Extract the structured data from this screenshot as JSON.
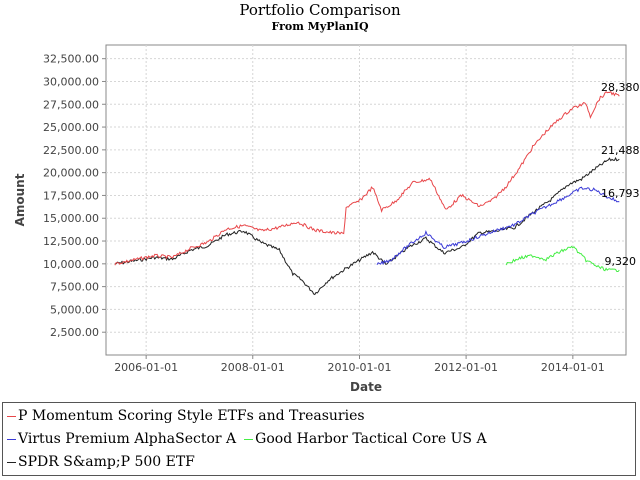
{
  "title": "Portfolio Comparison",
  "subtitle": "From MyPlanIQ",
  "chart_data": {
    "type": "line",
    "title": "Portfolio Comparison",
    "subtitle": "From MyPlanIQ",
    "xlabel": "Date",
    "ylabel": "Amount",
    "xlim": [
      "2005-04-01",
      "2014-12-31"
    ],
    "ylim": [
      0,
      34000
    ],
    "x_ticks": [
      "2006-01-01",
      "2008-01-01",
      "2010-01-01",
      "2012-01-01",
      "2014-01-01"
    ],
    "y_ticks": [
      "2,500.00",
      "5,000.00",
      "7,500.00",
      "10,000.00",
      "12,500.00",
      "15,000.00",
      "17,500.00",
      "20,000.00",
      "22,500.00",
      "25,000.00",
      "27,500.00",
      "30,000.00",
      "32,500.00"
    ],
    "y_tick_values": [
      2500,
      5000,
      7500,
      10000,
      12500,
      15000,
      17500,
      20000,
      22500,
      25000,
      27500,
      30000,
      32500
    ],
    "grid": true,
    "legend_position": "bottom",
    "series": [
      {
        "name": "P Momentum Scoring Style ETFs and Treasuries",
        "color": "#e8474a",
        "end_label": "28,380",
        "points": [
          [
            "2005-06-01",
            10000
          ],
          [
            "2005-10-01",
            10400
          ],
          [
            "2006-03-01",
            10900
          ],
          [
            "2006-07-01",
            10700
          ],
          [
            "2006-11-01",
            11700
          ],
          [
            "2007-03-01",
            12400
          ],
          [
            "2007-07-01",
            13800
          ],
          [
            "2007-11-01",
            14200
          ],
          [
            "2008-03-01",
            13600
          ],
          [
            "2008-07-01",
            14000
          ],
          [
            "2008-11-01",
            14600
          ],
          [
            "2009-03-01",
            13700
          ],
          [
            "2009-07-01",
            13400
          ],
          [
            "2009-09-15",
            13300
          ],
          [
            "2009-10-01",
            16200
          ],
          [
            "2010-01-01",
            16900
          ],
          [
            "2010-04-01",
            18400
          ],
          [
            "2010-06-01",
            15900
          ],
          [
            "2010-09-01",
            16800
          ],
          [
            "2011-01-01",
            18900
          ],
          [
            "2011-05-01",
            19300
          ],
          [
            "2011-08-15",
            15900
          ],
          [
            "2011-12-01",
            17500
          ],
          [
            "2012-04-01",
            16300
          ],
          [
            "2012-07-01",
            17000
          ],
          [
            "2012-10-01",
            18500
          ],
          [
            "2013-01-01",
            20500
          ],
          [
            "2013-04-01",
            22800
          ],
          [
            "2013-07-01",
            24500
          ],
          [
            "2013-10-01",
            25900
          ],
          [
            "2014-01-01",
            27100
          ],
          [
            "2014-04-01",
            27600
          ],
          [
            "2014-05-01",
            26200
          ],
          [
            "2014-07-01",
            28100
          ],
          [
            "2014-09-01",
            28900
          ],
          [
            "2014-11-15",
            28380
          ]
        ]
      },
      {
        "name": "Virtus Premium AlphaSector A",
        "color": "#3a3ad6",
        "end_label": "16,793",
        "points": [
          [
            "2010-05-01",
            9900
          ],
          [
            "2010-08-01",
            10400
          ],
          [
            "2010-12-01",
            12000
          ],
          [
            "2011-04-01",
            13400
          ],
          [
            "2011-08-01",
            11800
          ],
          [
            "2011-12-01",
            12300
          ],
          [
            "2012-04-01",
            13000
          ],
          [
            "2012-08-01",
            13700
          ],
          [
            "2012-12-01",
            14300
          ],
          [
            "2013-04-01",
            15500
          ],
          [
            "2013-08-01",
            16500
          ],
          [
            "2013-12-01",
            17500
          ],
          [
            "2014-03-01",
            18300
          ],
          [
            "2014-06-01",
            18100
          ],
          [
            "2014-09-01",
            17300
          ],
          [
            "2014-11-15",
            16793
          ]
        ]
      },
      {
        "name": "Good Harbor Tactical Core US A",
        "color": "#44ee44",
        "end_label": "9,320",
        "points": [
          [
            "2012-10-01",
            10000
          ],
          [
            "2013-01-01",
            10600
          ],
          [
            "2013-04-01",
            10900
          ],
          [
            "2013-07-01",
            10500
          ],
          [
            "2013-10-01",
            11300
          ],
          [
            "2014-01-01",
            11900
          ],
          [
            "2014-04-01",
            10400
          ],
          [
            "2014-07-01",
            9600
          ],
          [
            "2014-09-01",
            9300
          ],
          [
            "2014-11-15",
            9320
          ]
        ]
      },
      {
        "name": "SPDR S&amp;P 500 ETF",
        "color": "#222222",
        "end_label": "21,488",
        "points": [
          [
            "2005-06-01",
            10000
          ],
          [
            "2005-10-01",
            10300
          ],
          [
            "2006-03-01",
            10700
          ],
          [
            "2006-07-01",
            10500
          ],
          [
            "2006-11-01",
            11500
          ],
          [
            "2007-03-01",
            12000
          ],
          [
            "2007-07-01",
            13200
          ],
          [
            "2007-11-01",
            13600
          ],
          [
            "2008-03-01",
            12300
          ],
          [
            "2008-07-01",
            11500
          ],
          [
            "2008-10-01",
            8900
          ],
          [
            "2008-12-01",
            8200
          ],
          [
            "2009-03-01",
            6700
          ],
          [
            "2009-06-01",
            8200
          ],
          [
            "2009-10-01",
            9500
          ],
          [
            "2010-01-01",
            10400
          ],
          [
            "2010-04-01",
            11300
          ],
          [
            "2010-07-01",
            9900
          ],
          [
            "2010-12-01",
            11800
          ],
          [
            "2011-04-01",
            12800
          ],
          [
            "2011-08-01",
            11200
          ],
          [
            "2011-12-01",
            11800
          ],
          [
            "2012-04-01",
            13400
          ],
          [
            "2012-08-01",
            13600
          ],
          [
            "2012-12-01",
            14000
          ],
          [
            "2013-04-01",
            15600
          ],
          [
            "2013-08-01",
            17000
          ],
          [
            "2013-12-01",
            18700
          ],
          [
            "2014-03-01",
            19300
          ],
          [
            "2014-06-01",
            20400
          ],
          [
            "2014-09-01",
            21400
          ],
          [
            "2014-11-15",
            21488
          ]
        ]
      }
    ]
  },
  "legend": {
    "rows": [
      [
        0
      ],
      [
        1,
        2
      ],
      [
        3
      ]
    ]
  }
}
